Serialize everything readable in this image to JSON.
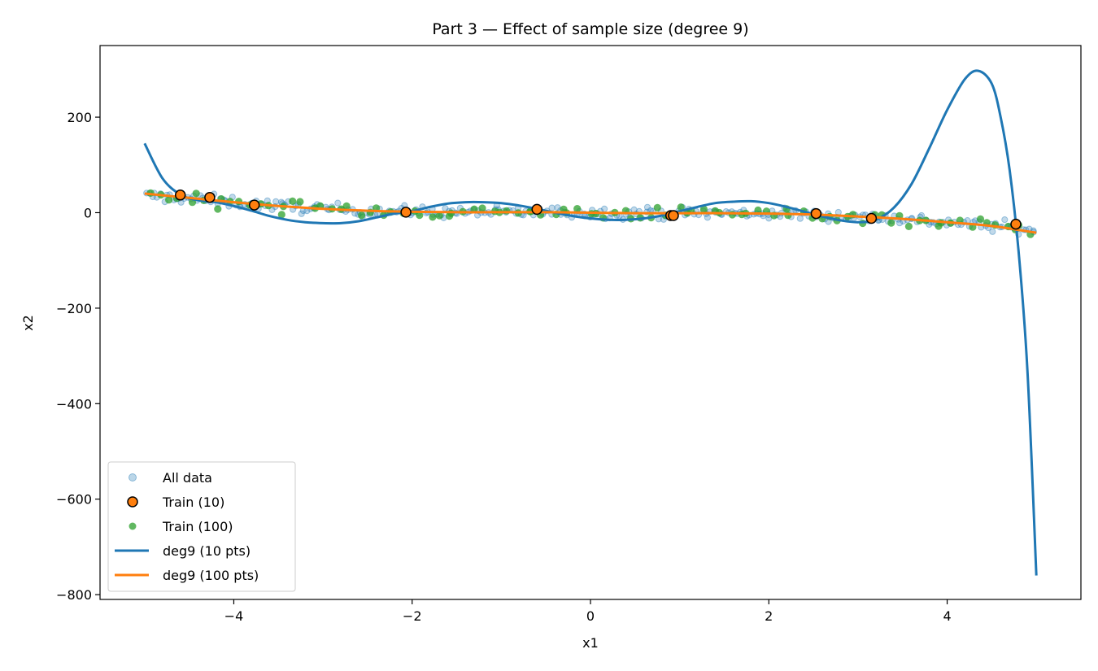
{
  "chart_data": {
    "type": "scatter",
    "title": "Part 3 — Effect of sample size (degree 9)",
    "xlabel": "x1",
    "ylabel": "x2",
    "xlim": [
      -5.5,
      5.5
    ],
    "ylim": [
      -810,
      350
    ],
    "xticks": [
      -4,
      -2,
      0,
      2,
      4
    ],
    "yticks": [
      200,
      0,
      -200,
      -400,
      -600,
      -800
    ],
    "xtick_labels": [
      "−4",
      "−2",
      "0",
      "2",
      "4"
    ],
    "ytick_labels": [
      "200",
      "0",
      "−200",
      "−400",
      "−600",
      "−800"
    ],
    "grid": false,
    "legend_position": "lower-left",
    "colors": {
      "all_data": "#1f77b4",
      "train10": "#ff7f0e",
      "train100": "#2ca02c",
      "fit10": "#1f77b4",
      "fit100": "#ff7f0e"
    },
    "series": [
      {
        "name": "All data",
        "kind": "scatter",
        "note_generation": "dense noisy samples along trend",
        "trend": {
          "x": [
            -5.0,
            -4.5,
            -4.0,
            -3.5,
            -3.0,
            -2.5,
            -2.0,
            -1.5,
            -1.0,
            -0.5,
            0.0,
            0.5,
            1.0,
            1.5,
            2.0,
            2.5,
            3.0,
            3.5,
            4.0,
            4.5,
            5.0
          ],
          "y": [
            35,
            30,
            22,
            14,
            8,
            4,
            2,
            1,
            1,
            1,
            0,
            -1,
            -1,
            -1,
            -2,
            -4,
            -8,
            -13,
            -20,
            -28,
            -36
          ]
        },
        "count": 300,
        "noise": 6
      },
      {
        "name": "Train (10)",
        "kind": "scatter",
        "x": [
          -4.6,
          -4.27,
          -3.77,
          -2.07,
          -0.6,
          0.9,
          0.93,
          2.53,
          3.15,
          4.77
        ],
        "y": [
          37,
          32,
          16,
          1,
          7,
          -6,
          -6,
          -2,
          -12,
          -24
        ]
      },
      {
        "name": "Train (100)",
        "kind": "scatter",
        "count": 100,
        "noise": 7
      },
      {
        "name": "deg9 (10 pts)",
        "kind": "line",
        "x": [
          -5.0,
          -4.8,
          -4.6,
          -4.4,
          -4.2,
          -4.0,
          -3.8,
          -3.6,
          -3.4,
          -3.2,
          -3.0,
          -2.8,
          -2.6,
          -2.4,
          -2.2,
          -2.0,
          -1.8,
          -1.6,
          -1.4,
          -1.2,
          -1.0,
          -0.8,
          -0.6,
          -0.4,
          -0.2,
          0.0,
          0.2,
          0.4,
          0.6,
          0.8,
          1.0,
          1.2,
          1.4,
          1.6,
          1.8,
          2.0,
          2.2,
          2.4,
          2.6,
          2.8,
          3.0,
          3.2,
          3.4,
          3.6,
          3.8,
          4.0,
          4.2,
          4.35,
          4.5,
          4.6,
          4.7,
          4.8,
          4.9,
          5.0
        ],
        "y": [
          145,
          72,
          38,
          26,
          22,
          14,
          4,
          -7,
          -15,
          -20,
          -22,
          -22,
          -18,
          -10,
          -2,
          3,
          12,
          19,
          22,
          22,
          20,
          15,
          8,
          0,
          -7,
          -12,
          -15,
          -15,
          -12,
          -6,
          3,
          12,
          20,
          23,
          24,
          20,
          12,
          2,
          -8,
          -16,
          -20,
          -15,
          10,
          60,
          135,
          215,
          280,
          297,
          270,
          200,
          90,
          -80,
          -330,
          -760
        ]
      },
      {
        "name": "deg9 (100 pts)",
        "kind": "line",
        "x": [
          -5.0,
          -4.5,
          -4.0,
          -3.5,
          -3.0,
          -2.5,
          -2.0,
          -1.5,
          -1.0,
          -0.5,
          0.0,
          0.5,
          1.0,
          1.5,
          2.0,
          2.5,
          3.0,
          3.5,
          4.0,
          4.5,
          5.0
        ],
        "y": [
          40,
          31,
          22,
          14,
          8,
          4,
          2,
          1,
          1,
          1,
          0,
          -1,
          -1,
          -1,
          -2,
          -4,
          -8,
          -13,
          -20,
          -28,
          -42
        ]
      }
    ]
  }
}
